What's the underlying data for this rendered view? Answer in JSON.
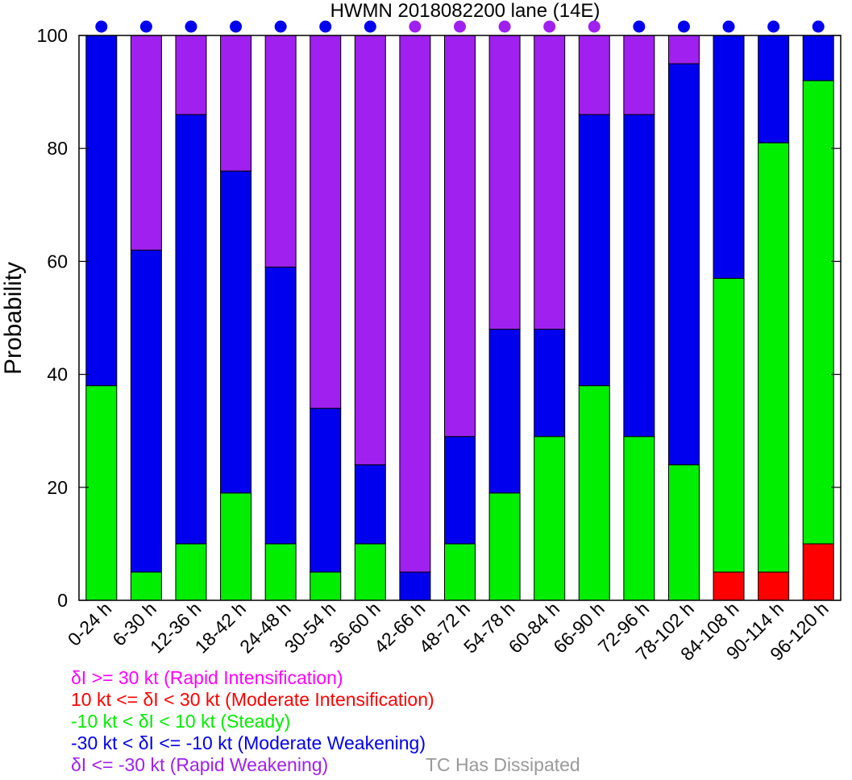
{
  "chart_data": {
    "type": "bar",
    "stacked": true,
    "title": "HWMN 2018082200 lane (14E)",
    "xlabel": "",
    "ylabel": "Probability",
    "ylim": [
      0,
      100
    ],
    "yticks": [
      0,
      20,
      40,
      60,
      80,
      100
    ],
    "grid": false,
    "categories": [
      "0-24 h",
      "6-30 h",
      "12-36 h",
      "18-42 h",
      "24-48 h",
      "30-54 h",
      "36-60 h",
      "42-66 h",
      "48-72 h",
      "54-78 h",
      "60-84 h",
      "66-90 h",
      "72-96 h",
      "78-102 h",
      "84-108 h",
      "90-114 h",
      "96-120 h"
    ],
    "series": [
      {
        "key": "mi",
        "color": "#ff0000",
        "values": [
          0,
          0,
          0,
          0,
          0,
          0,
          0,
          0,
          0,
          0,
          0,
          0,
          0,
          0,
          5,
          5,
          10
        ]
      },
      {
        "key": "st",
        "color": "#00ee00",
        "values": [
          38,
          5,
          10,
          19,
          10,
          5,
          10,
          0,
          10,
          19,
          29,
          38,
          29,
          24,
          52,
          76,
          82
        ]
      },
      {
        "key": "mw",
        "color": "#0000ee",
        "values": [
          62,
          57,
          76,
          57,
          49,
          29,
          14,
          5,
          19,
          29,
          19,
          48,
          57,
          71,
          43,
          19,
          8
        ]
      },
      {
        "key": "rw",
        "color": "#a020f0",
        "values": [
          0,
          38,
          14,
          24,
          41,
          66,
          76,
          95,
          71,
          52,
          52,
          14,
          14,
          5,
          0,
          0,
          0
        ]
      }
    ],
    "top_markers": [
      {
        "color": "#0000ee"
      },
      {
        "color": "#0000ee"
      },
      {
        "color": "#0000ee"
      },
      {
        "color": "#0000ee"
      },
      {
        "color": "#0000ee"
      },
      {
        "color": "#0000ee"
      },
      {
        "color": "#0000ee"
      },
      {
        "color": "#a020f0"
      },
      {
        "color": "#a020f0"
      },
      {
        "color": "#a020f0"
      },
      {
        "color": "#a020f0"
      },
      {
        "color": "#a020f0"
      },
      {
        "color": "#0000ee"
      },
      {
        "color": "#0000ee"
      },
      {
        "color": "#0000ee"
      },
      {
        "color": "#0000ee"
      },
      {
        "color": "#0000ee"
      }
    ]
  },
  "legend": {
    "ri": {
      "text": "δI >= 30 kt (Rapid Intensification)",
      "color": "#ff00ff"
    },
    "mi": {
      "text": "10 kt <= δI < 30 kt (Moderate Intensification)",
      "color": "#ff0000"
    },
    "st": {
      "text": "-10 kt < δI < 10 kt (Steady)",
      "color": "#00ee00"
    },
    "mw": {
      "text": "-30 kt < δI <= -10 kt (Moderate Weakening)",
      "color": "#0000ee"
    },
    "rw": {
      "text": "δI <= -30 kt (Rapid Weakening)",
      "color": "#a020f0"
    },
    "dissipated": {
      "text": "TC Has Dissipated",
      "color": "#999999"
    }
  }
}
